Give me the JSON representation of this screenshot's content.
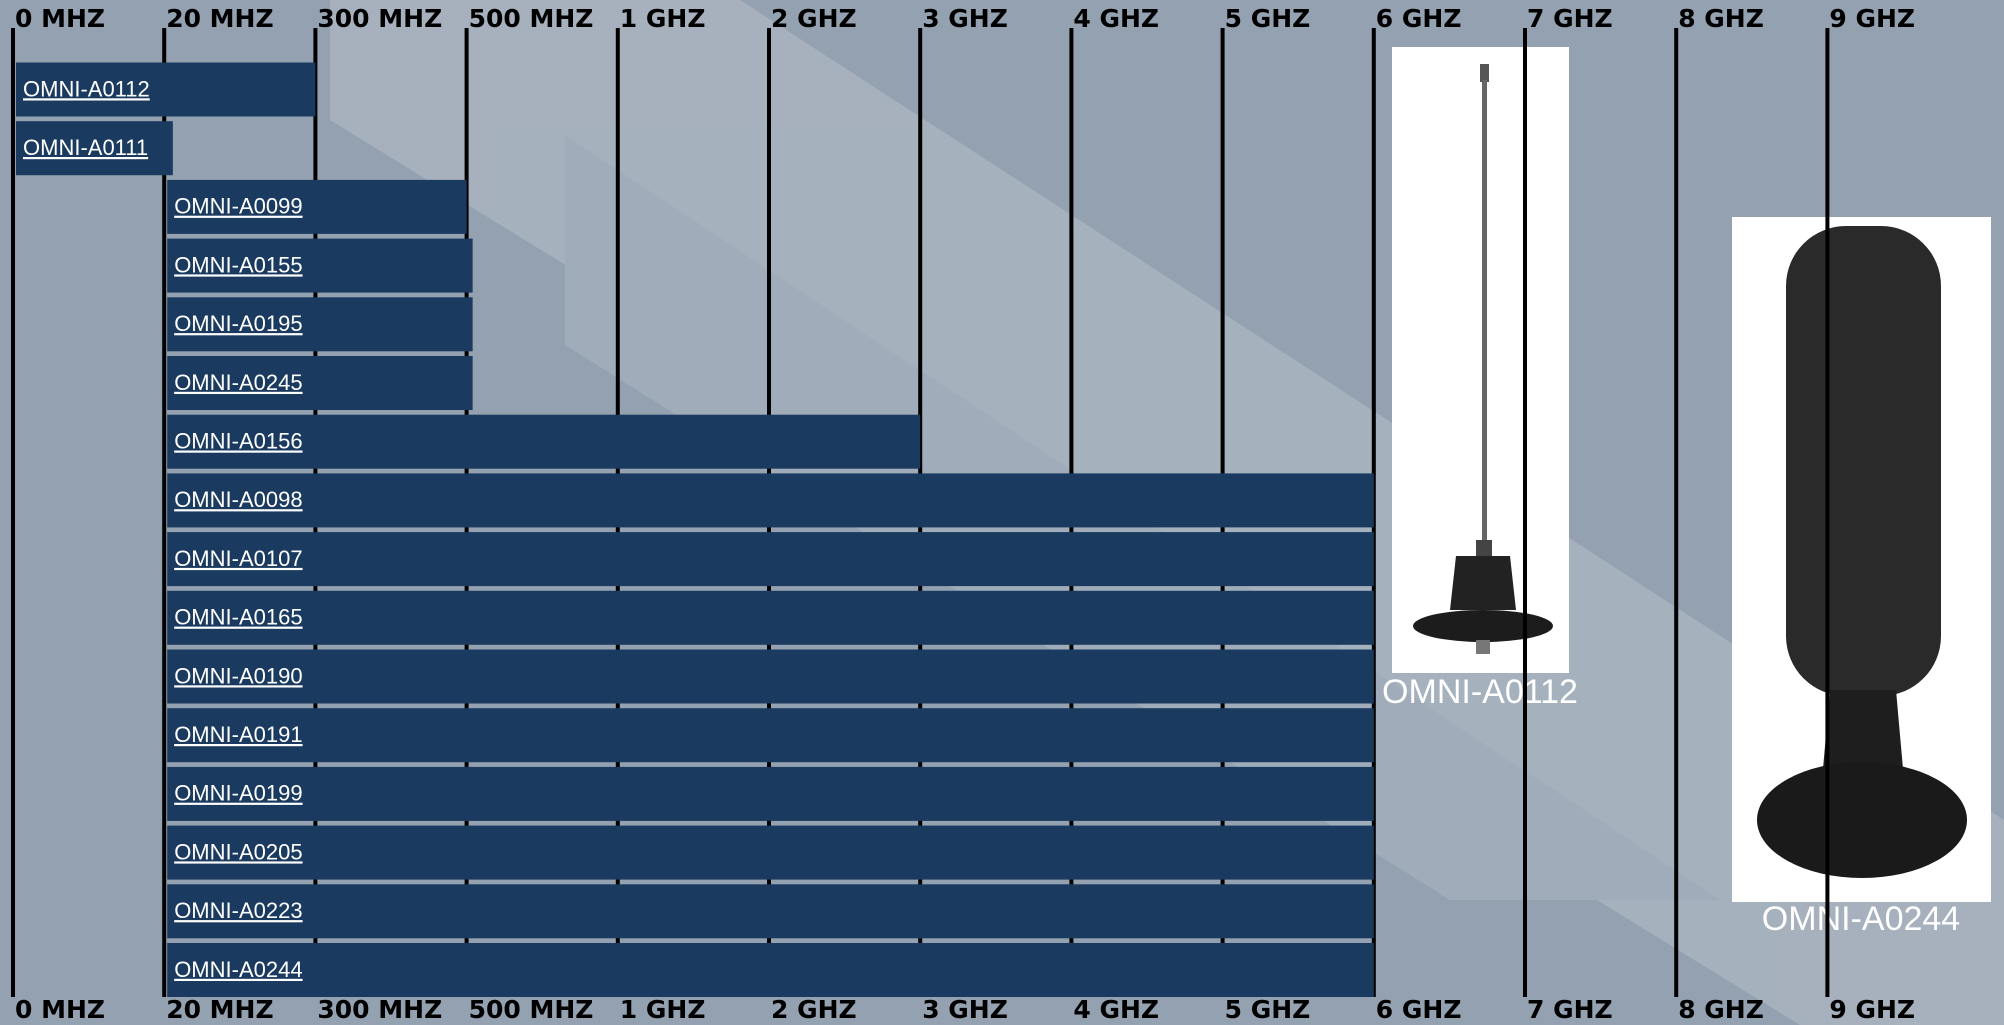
{
  "chart_data": {
    "type": "range-bar",
    "color": "#1a3b5f",
    "xticks": [
      {
        "value": 0,
        "label": "0 MHZ"
      },
      {
        "value": 20,
        "label": "20 MHZ"
      },
      {
        "value": 300,
        "label": "300 MHZ"
      },
      {
        "value": 500,
        "label": "500 MHZ"
      },
      {
        "value": 1000,
        "label": "1 GHZ"
      },
      {
        "value": 2000,
        "label": "2 GHZ"
      },
      {
        "value": 3000,
        "label": "3 GHZ"
      },
      {
        "value": 4000,
        "label": "4 GHZ"
      },
      {
        "value": 5000,
        "label": "5 GHZ"
      },
      {
        "value": 6000,
        "label": "6 GHZ"
      },
      {
        "value": 7000,
        "label": "7 GHZ"
      },
      {
        "value": 8000,
        "label": "8 GHZ"
      },
      {
        "value": 9000,
        "label": "9 GHZ"
      }
    ],
    "categories": [
      "OMNI-A0112",
      "OMNI-A0111",
      "OMNI-A0099",
      "OMNI-A0155",
      "OMNI-A0195",
      "OMNI-A0245",
      "OMNI-A0156",
      "OMNI-A0098",
      "OMNI-A0107",
      "OMNI-A0165",
      "OMNI-A0190",
      "OMNI-A0191",
      "OMNI-A0199",
      "OMNI-A0205",
      "OMNI-A0223",
      "OMNI-A0244"
    ],
    "start": [
      0,
      0,
      20,
      20,
      20,
      20,
      20,
      20,
      20,
      20,
      20,
      20,
      20,
      20,
      20,
      20
    ],
    "end": [
      300,
      36,
      500,
      520,
      520,
      520,
      3000,
      6000,
      6000,
      6000,
      6000,
      6000,
      6000,
      6000,
      6000,
      6000
    ],
    "images": [
      "OMNI-A0112",
      "OMNI-A0244"
    ]
  }
}
